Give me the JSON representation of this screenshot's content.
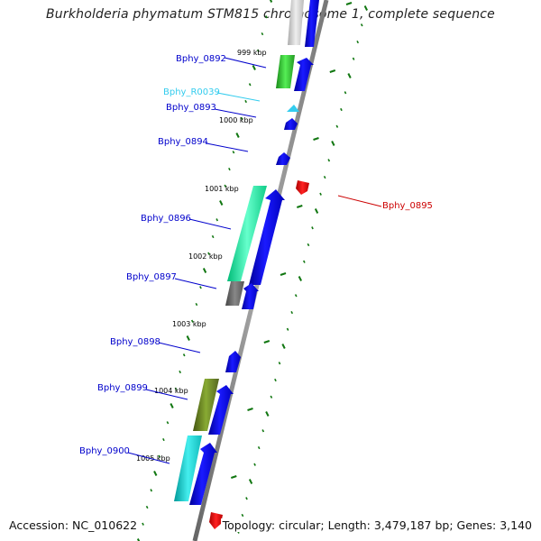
{
  "title": "Burkholderia phymatum STM815 chromosome 1, complete sequence",
  "footer": {
    "accession": "Accession: NC_010622",
    "summary": "Topology: circular; Length: 3,479,187 bp; Genes: 3,140"
  },
  "ruler_labels": [
    "999 kbp",
    "1000 kbp",
    "1001 kbp",
    "1002 kbp",
    "1003 kbp",
    "1004 kbp",
    "1005 kbp"
  ],
  "genes": [
    {
      "name": "Bphy_0892",
      "color": "#0000cc",
      "strand": "forward",
      "feature_color": "#33cc33"
    },
    {
      "name": "Bphy_R0039",
      "color": "#33ccee",
      "strand": "forward",
      "feature_color": "#33ccee"
    },
    {
      "name": "Bphy_0893",
      "color": "#0000cc",
      "strand": "forward",
      "feature_color": ""
    },
    {
      "name": "Bphy_0894",
      "color": "#0000cc",
      "strand": "forward",
      "feature_color": ""
    },
    {
      "name": "Bphy_0895",
      "color": "#cc0000",
      "strand": "reverse",
      "feature_color": ""
    },
    {
      "name": "Bphy_0896",
      "color": "#0000cc",
      "strand": "forward",
      "feature_color": "#22ee99"
    },
    {
      "name": "Bphy_0897",
      "color": "#0000cc",
      "strand": "forward",
      "feature_color": "#666666"
    },
    {
      "name": "Bphy_0898",
      "color": "#0000cc",
      "strand": "forward",
      "feature_color": ""
    },
    {
      "name": "Bphy_0899",
      "color": "#0000cc",
      "strand": "forward",
      "feature_color": "#668822"
    },
    {
      "name": "Bphy_0900",
      "color": "#0000cc",
      "strand": "forward",
      "feature_color": "#22cccc"
    }
  ],
  "colors": {
    "backbone": "#888888",
    "tick": "#117711",
    "forward_gene": "#0000ee",
    "reverse_gene": "#ee0000"
  }
}
